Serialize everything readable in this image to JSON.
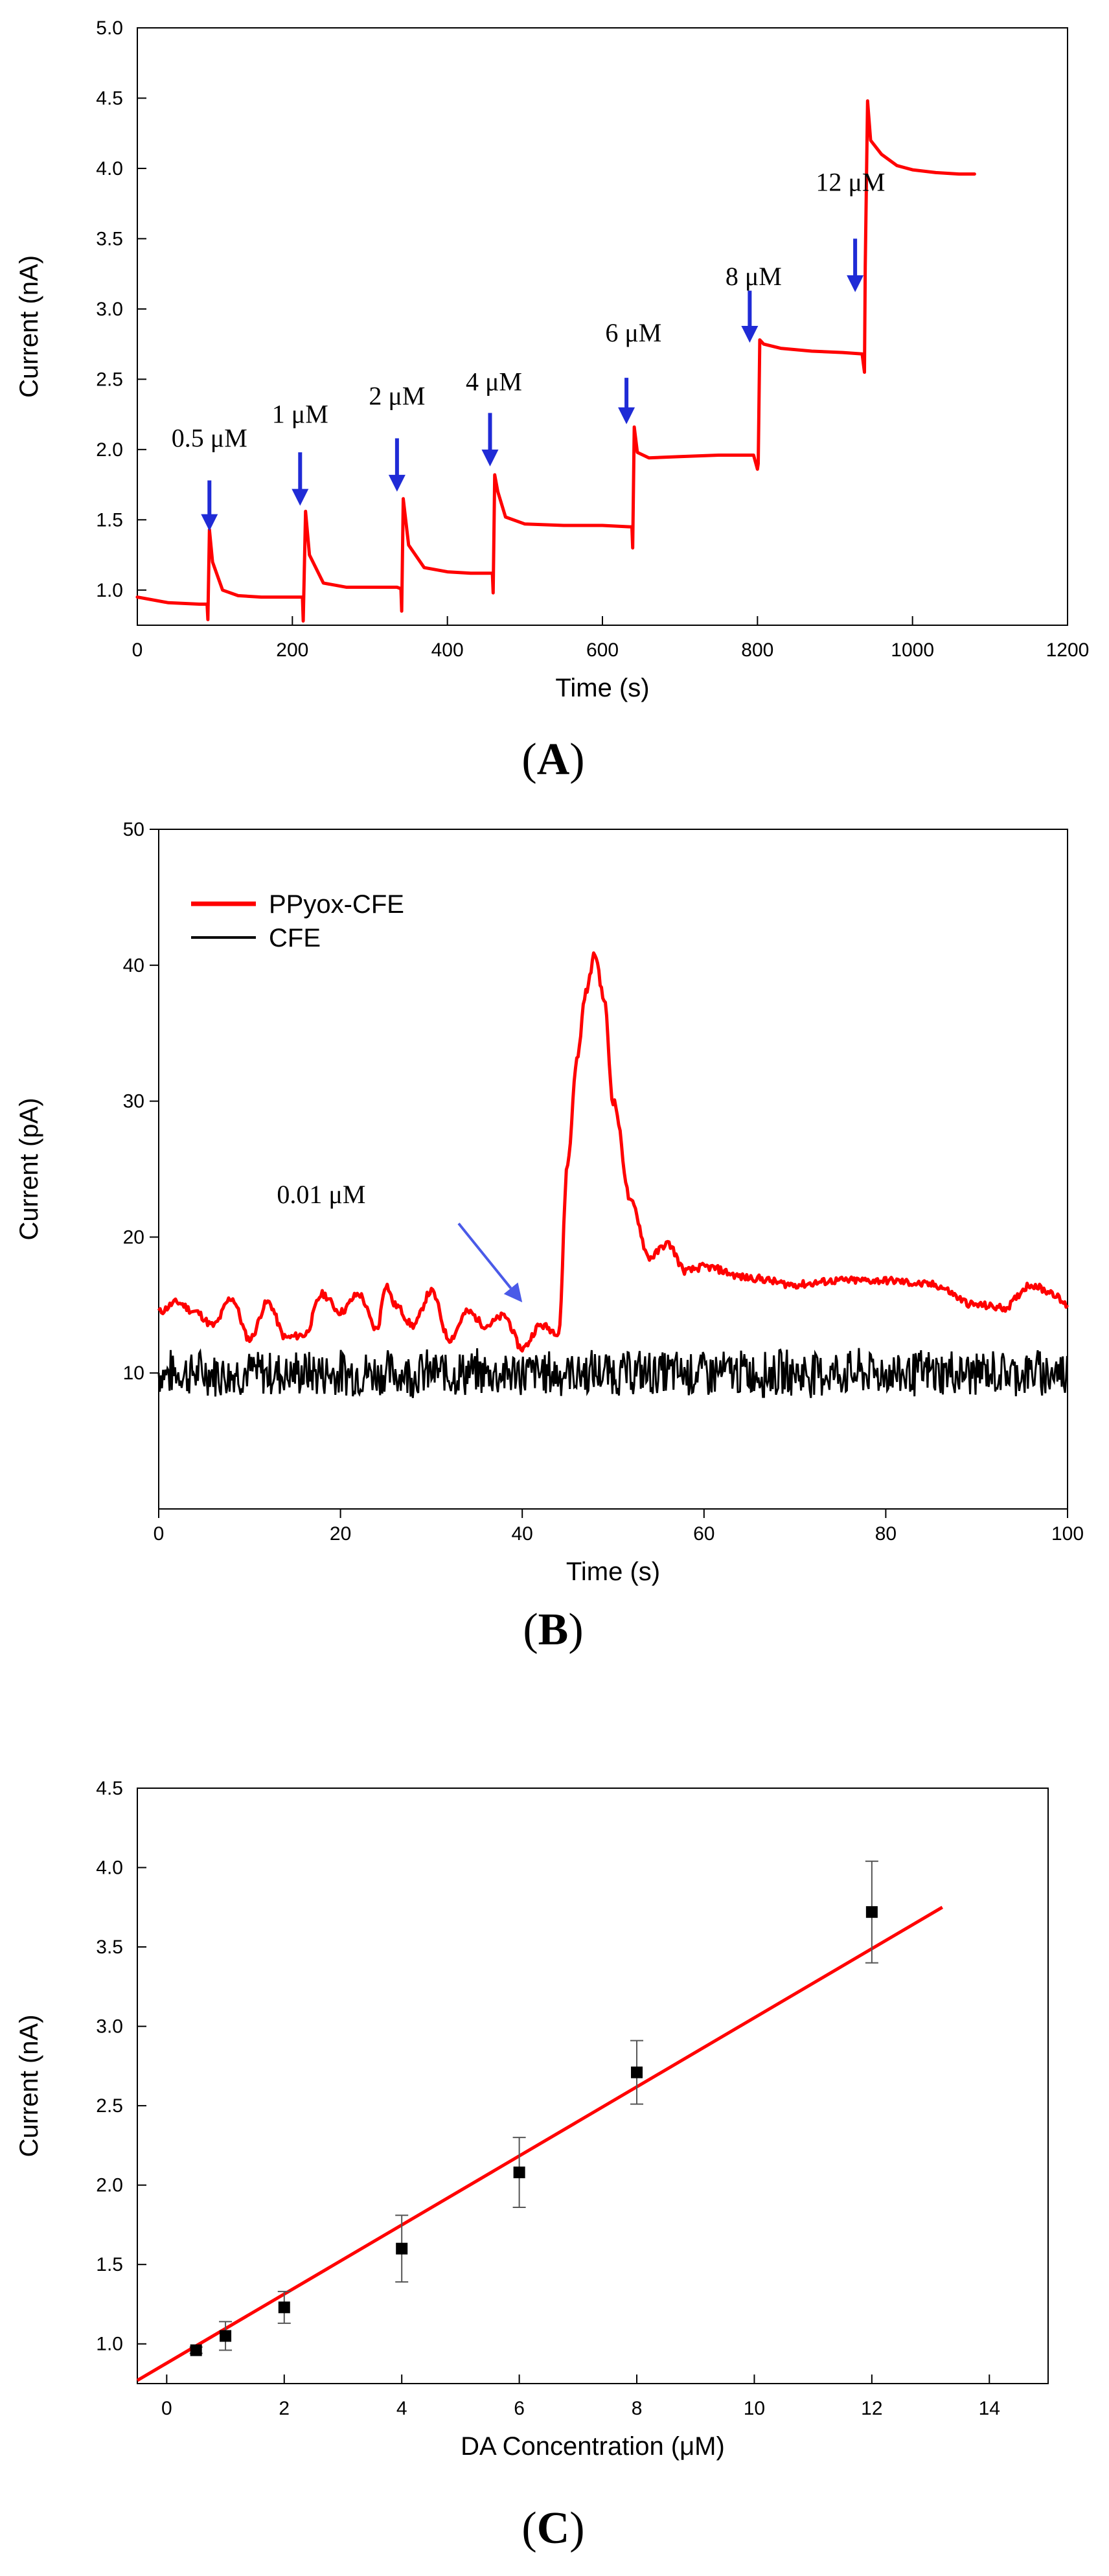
{
  "chart_data": [
    {
      "id": "A",
      "type": "line",
      "panel_label": "(A)",
      "panel_letter": "A",
      "xlabel": "Time (s)",
      "ylabel": "Current (nA)",
      "xlim": [
        0,
        1200
      ],
      "ylim": [
        0.75,
        5.0
      ],
      "xticks": [
        0,
        200,
        400,
        600,
        800,
        1000,
        1200
      ],
      "xtick_labels": [
        "0",
        "200",
        "400",
        "600",
        "800",
        "1000",
        "1200"
      ],
      "yticks": [
        1.0,
        1.5,
        2.0,
        2.5,
        3.0,
        3.5,
        4.0,
        4.5,
        5.0
      ],
      "ytick_labels": [
        "1.0",
        "1.5",
        "2.0",
        "2.5",
        "3.0",
        "3.5",
        "4.0",
        "4.5",
        "5.0"
      ],
      "series": [
        {
          "name": "trace",
          "color": "#ff0000",
          "x": [
            0,
            40,
            80,
            90,
            91,
            93,
            97,
            110,
            130,
            160,
            200,
            213,
            214,
            217,
            222,
            240,
            270,
            300,
            335,
            340,
            341,
            343,
            350,
            370,
            400,
            430,
            455,
            458,
            459,
            461,
            465,
            475,
            500,
            550,
            600,
            635,
            638,
            639,
            641,
            645,
            660,
            700,
            750,
            795,
            800,
            801,
            803,
            808,
            830,
            870,
            910,
            935,
            938,
            939,
            942,
            946,
            960,
            980,
            1000,
            1030,
            1060,
            1080
          ],
          "y": [
            0.95,
            0.91,
            0.9,
            0.9,
            0.79,
            1.43,
            1.2,
            1.0,
            0.96,
            0.95,
            0.95,
            0.95,
            0.78,
            1.56,
            1.25,
            1.05,
            1.02,
            1.02,
            1.02,
            1.01,
            0.85,
            1.65,
            1.32,
            1.16,
            1.13,
            1.12,
            1.12,
            1.12,
            0.98,
            1.82,
            1.7,
            1.52,
            1.47,
            1.46,
            1.46,
            1.45,
            1.45,
            1.3,
            2.16,
            1.98,
            1.94,
            1.95,
            1.96,
            1.96,
            1.86,
            1.9,
            2.78,
            2.75,
            2.72,
            2.7,
            2.69,
            2.68,
            2.55,
            3.3,
            4.48,
            4.2,
            4.1,
            4.02,
            3.99,
            3.97,
            3.96,
            3.96
          ]
        }
      ],
      "annotations": [
        {
          "text": "0.5 μM",
          "x": 93,
          "y": 2.02,
          "arrow_x": 93,
          "arrow_top": 1.78,
          "arrow_tip": 1.42
        },
        {
          "text": "1 μM",
          "x": 210,
          "y": 2.19,
          "arrow_x": 210,
          "arrow_top": 1.98,
          "arrow_tip": 1.6
        },
        {
          "text": "2 μM",
          "x": 335,
          "y": 2.32,
          "arrow_x": 335,
          "arrow_top": 2.08,
          "arrow_tip": 1.7
        },
        {
          "text": "4 μM",
          "x": 460,
          "y": 2.42,
          "arrow_x": 455,
          "arrow_top": 2.26,
          "arrow_tip": 1.88
        },
        {
          "text": "6 μM",
          "x": 640,
          "y": 2.77,
          "arrow_x": 631,
          "arrow_top": 2.51,
          "arrow_tip": 2.18
        },
        {
          "text": "8 μM",
          "x": 795,
          "y": 3.17,
          "arrow_x": 790,
          "arrow_top": 3.13,
          "arrow_tip": 2.76
        },
        {
          "text": "12 μM",
          "x": 920,
          "y": 3.84,
          "arrow_x": 926,
          "arrow_top": 3.5,
          "arrow_tip": 3.12
        }
      ]
    },
    {
      "id": "B",
      "type": "line",
      "panel_label": "(B)",
      "panel_letter": "B",
      "xlabel": "Time (s)",
      "ylabel": "Current (pA)",
      "xlim": [
        0,
        100
      ],
      "ylim": [
        0,
        50
      ],
      "xticks": [
        0,
        20,
        40,
        60,
        80,
        100
      ],
      "xtick_labels": [
        "0",
        "20",
        "40",
        "60",
        "80",
        "100"
      ],
      "yticks": [
        10,
        20,
        30,
        40,
        50
      ],
      "ytick_labels": [
        "10",
        "20",
        "30",
        "40",
        "50"
      ],
      "legend": [
        {
          "label": "PPyox-CFE",
          "color": "#ff0000"
        },
        {
          "label": "CFE",
          "color": "#000000"
        }
      ],
      "series": [
        {
          "name": "PPyox-CFE",
          "color": "#ff0000",
          "x": [
            0,
            2,
            4,
            6,
            8,
            10,
            12,
            14,
            16,
            18,
            20,
            22,
            24,
            25,
            26,
            28,
            30,
            32,
            34,
            36,
            38,
            40,
            42,
            44,
            45,
            46,
            47,
            48,
            49,
            50,
            52,
            54,
            56,
            58,
            60,
            65,
            70,
            75,
            80,
            85,
            90,
            93,
            96,
            98,
            100
          ],
          "y": [
            14.5,
            15.2,
            14.5,
            13.5,
            15.5,
            12.5,
            15.2,
            12.6,
            12.8,
            15.8,
            14.5,
            15.8,
            13.2,
            16.5,
            15.0,
            13.5,
            16.0,
            12.5,
            14.5,
            13.5,
            14.2,
            11.8,
            13.5,
            13.0,
            25.5,
            33.0,
            38.0,
            40.8,
            37.5,
            30.0,
            22.5,
            18.5,
            19.5,
            17.5,
            17.8,
            17.0,
            16.5,
            16.8,
            16.8,
            16.5,
            15.0,
            14.8,
            16.5,
            16.0,
            15.0
          ]
        },
        {
          "name": "CFE",
          "color": "#000000",
          "noise": true,
          "mean": 10,
          "amplitude": 1.6,
          "x_range": [
            0,
            100
          ]
        }
      ],
      "annotations": [
        {
          "text": "0.01 μM",
          "x": 13,
          "y": 22.5,
          "arrow_from": [
            33,
            21
          ],
          "arrow_to": [
            40,
            15.2
          ]
        }
      ]
    },
    {
      "id": "C",
      "type": "scatter",
      "panel_label": "(C)",
      "panel_letter": "C",
      "xlabel": "DA Concentration (μM)",
      "ylabel": "Current (nA)",
      "xlim": [
        -0.5,
        15
      ],
      "ylim": [
        0.75,
        4.5
      ],
      "xticks": [
        0,
        2,
        4,
        6,
        8,
        10,
        12,
        14
      ],
      "xtick_labels": [
        "0",
        "2",
        "4",
        "6",
        "8",
        "10",
        "12",
        "14"
      ],
      "yticks": [
        1.0,
        1.5,
        2.0,
        2.5,
        3.0,
        3.5,
        4.0,
        4.5
      ],
      "ytick_labels": [
        "1.0",
        "1.5",
        "2.0",
        "2.5",
        "3.0",
        "3.5",
        "4.0",
        "4.5"
      ],
      "points": [
        {
          "x": 0.5,
          "y": 0.96,
          "err": 0.02
        },
        {
          "x": 1,
          "y": 1.05,
          "err": 0.09
        },
        {
          "x": 2,
          "y": 1.23,
          "err": 0.1
        },
        {
          "x": 4,
          "y": 1.6,
          "err": 0.21
        },
        {
          "x": 6,
          "y": 2.08,
          "err": 0.22
        },
        {
          "x": 8,
          "y": 2.71,
          "err": 0.2
        },
        {
          "x": 12,
          "y": 3.72,
          "err": 0.32
        }
      ],
      "fit": {
        "color": "#ff0000",
        "x": [
          -0.5,
          13.2
        ],
        "y": [
          0.77,
          3.75
        ]
      }
    }
  ]
}
